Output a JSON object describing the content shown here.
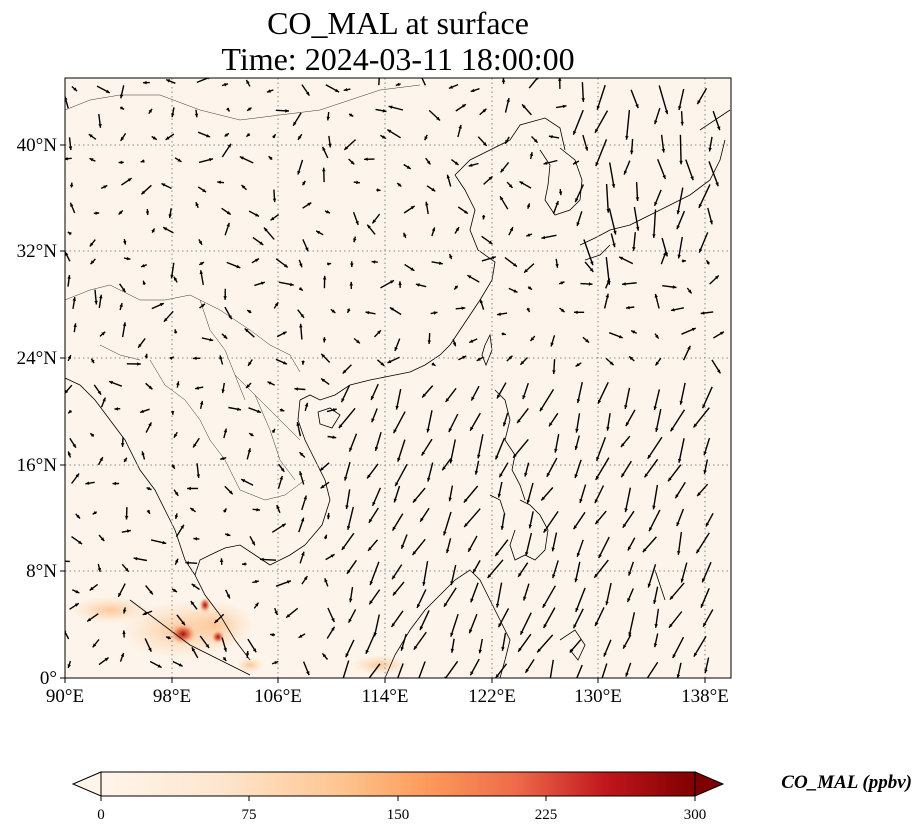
{
  "title": {
    "line1": "CO_MAL at surface",
    "line2": "Time: 2024-03-11 18:00:00"
  },
  "map": {
    "lon_range": [
      90,
      140
    ],
    "lat_range": [
      0,
      45
    ],
    "lon_ticks": [
      "90°E",
      "98°E",
      "106°E",
      "114°E",
      "122°E",
      "130°E",
      "138°E"
    ],
    "lat_ticks": [
      "0°",
      "8°N",
      "16°N",
      "24°N",
      "32°N",
      "40°N"
    ],
    "gridlines": "dotted",
    "background_color": "#fdf5eb",
    "hotspot_region": "Sumatra / Malay Peninsula",
    "wind_vectors": "black arrows"
  },
  "colorbar": {
    "label": "CO_MAL (ppbv)",
    "ticks": [
      "0",
      "75",
      "150",
      "225",
      "300"
    ],
    "min": 0,
    "max": 300,
    "colormap": [
      "#fff5eb",
      "#fdd7b0",
      "#fdae6b",
      "#f16913",
      "#d94801",
      "#a50f15",
      "#7f0000"
    ],
    "extend": "both"
  }
}
